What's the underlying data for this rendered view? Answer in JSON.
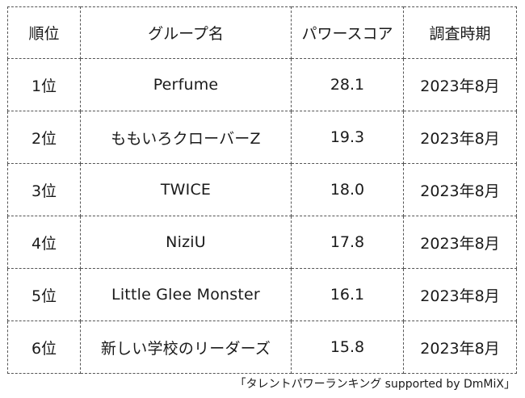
{
  "table": {
    "headers": {
      "rank": "順位",
      "group": "グループ名",
      "score": "パワースコア",
      "period": "調査時期"
    },
    "rows": [
      {
        "rank": "1位",
        "group": "Perfume",
        "score": "28.1",
        "period": "2023年8月"
      },
      {
        "rank": "2位",
        "group": "ももいろクローバーZ",
        "score": "19.3",
        "period": "2023年8月"
      },
      {
        "rank": "3位",
        "group": "TWICE",
        "score": "18.0",
        "period": "2023年8月"
      },
      {
        "rank": "4位",
        "group": "NiziU",
        "score": "17.8",
        "period": "2023年8月"
      },
      {
        "rank": "5位",
        "group": "Little Glee Monster",
        "score": "16.1",
        "period": "2023年8月"
      },
      {
        "rank": "6位",
        "group": "新しい学校のリーダーズ",
        "score": "15.8",
        "period": "2023年8月"
      }
    ]
  },
  "source_note": "「タレントパワーランキング supported by DmMiX」"
}
